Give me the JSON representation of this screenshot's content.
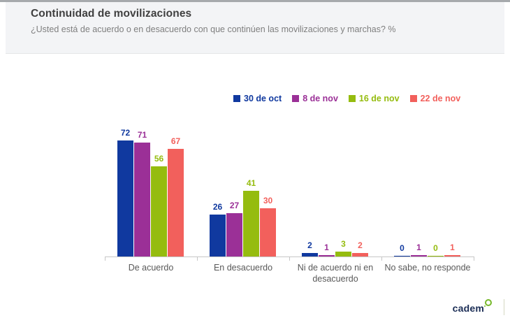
{
  "header": {
    "title": "Continuidad de movilizaciones",
    "subtitle": "¿Usted está de acuerdo o en desacuerdo con que continúen las movilizaciones y marchas? %"
  },
  "chart_data": {
    "type": "bar",
    "title": "Continuidad de movilizaciones",
    "subtitle": "¿Usted está de acuerdo o en desacuerdo con que continúen las movilizaciones y marchas? %",
    "unit": "%",
    "categories": [
      "De acuerdo",
      "En desacuerdo",
      "Ni de acuerdo ni en desacuerdo",
      "No sabe, no responde"
    ],
    "series": [
      {
        "name": "30 de oct",
        "color": "#10399f",
        "values": [
          72,
          26,
          2,
          0
        ]
      },
      {
        "name": "8 de nov",
        "color": "#9b3097",
        "values": [
          71,
          27,
          1,
          1
        ]
      },
      {
        "name": "16 de nov",
        "color": "#95bc0f",
        "values": [
          56,
          41,
          3,
          0
        ]
      },
      {
        "name": "22 de nov",
        "color": "#f2605c",
        "values": [
          67,
          30,
          2,
          1
        ]
      }
    ],
    "ylim": [
      0,
      80
    ],
    "grid": false,
    "y_axis_visible": false,
    "legend_position": "top",
    "data_labels": true
  },
  "footer": {
    "logo_text": "cadem",
    "logo_text_color": "#1b2d55",
    "logo_accent_color": "#76b82a"
  },
  "colors": {
    "header_background": "#f3f4f6",
    "top_strip": "#a6a9ac",
    "axis": "#c6c6c6",
    "category_label": "#595959",
    "title": "#3f3f3f",
    "subtitle": "#7f7f7f"
  }
}
